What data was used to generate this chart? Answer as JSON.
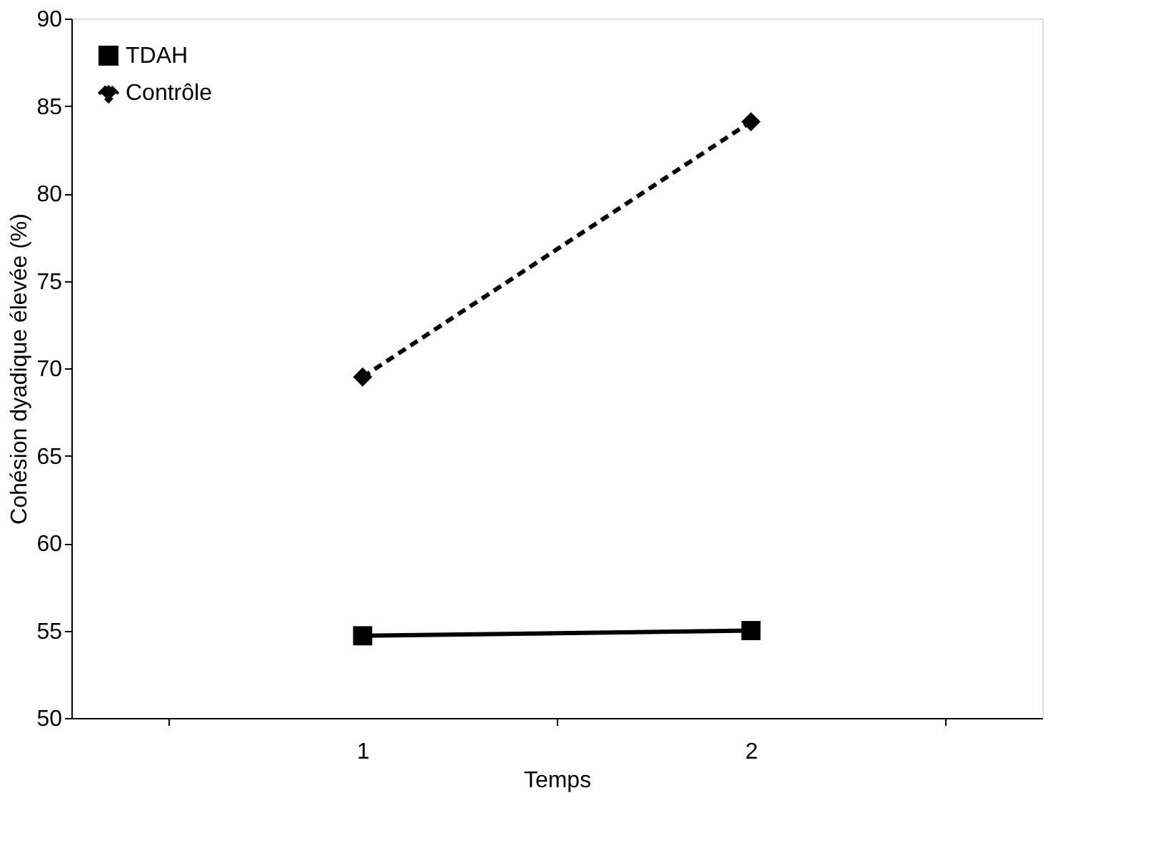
{
  "chart_data": {
    "type": "line",
    "xlabel": "Temps",
    "ylabel": "Cohésion dyadique élevée (%)",
    "categories": [
      "1",
      "2"
    ],
    "series": [
      {
        "name": "TDAH",
        "color": "#000000",
        "values": [
          54.7,
          55.0
        ],
        "marker": "square",
        "line_style": "solid"
      },
      {
        "name": "Contrôle",
        "color": "#000000",
        "values": [
          69.5,
          84.1
        ],
        "marker": "diamond",
        "line_style": "dashed"
      }
    ],
    "ylim": [
      50,
      90
    ],
    "yticks": [
      50,
      55,
      60,
      65,
      70,
      75,
      80,
      85,
      90
    ],
    "grid": false,
    "legend": "top left"
  }
}
